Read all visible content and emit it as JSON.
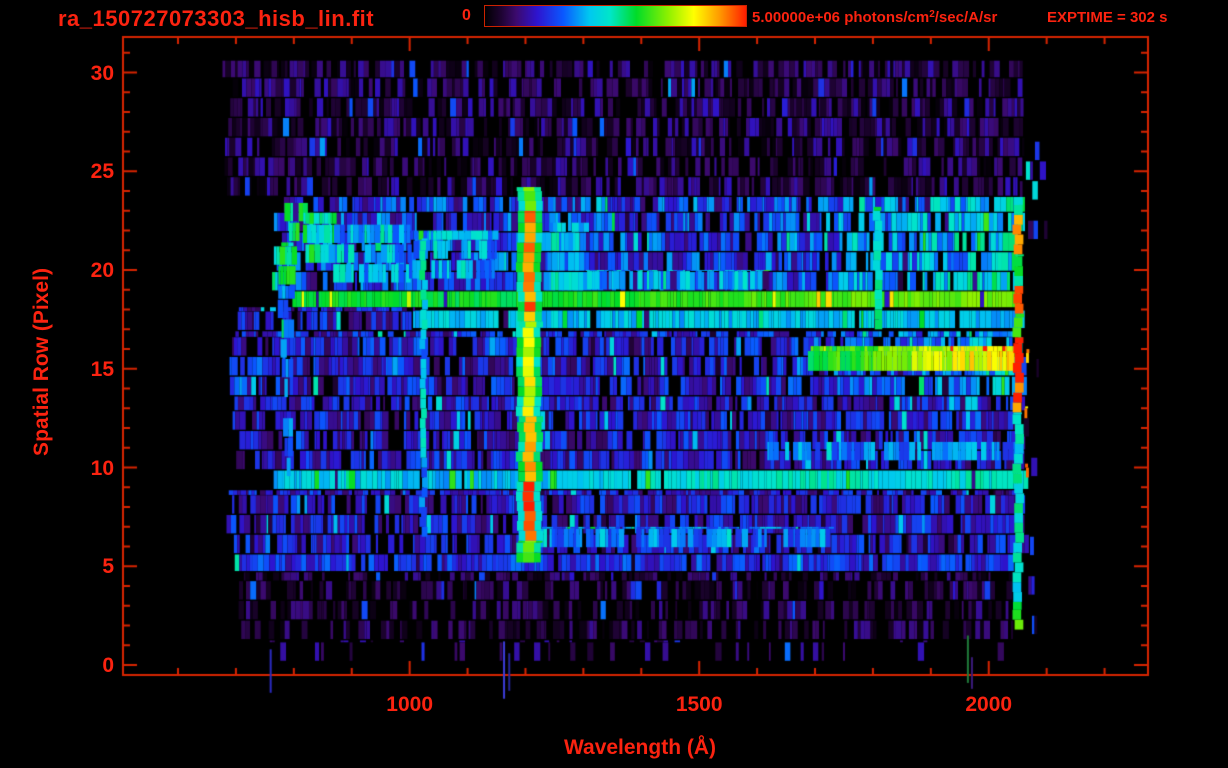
{
  "header": {
    "title": "ra_150727073303_hisb_lin.fit",
    "exptime": "EXPTIME = 302 s",
    "colorbar": {
      "min_label": "0",
      "flux": {
        "value": "5.00000e+06 ",
        "units_prefix": "photons/cm",
        "units_sup": "2",
        "units_suffix": "/sec/A/sr"
      }
    }
  },
  "axes": {
    "x_label": "Wavelength (Å)",
    "y_label": "Spatial Row (Pixel)",
    "x_ticks": [
      1000,
      1500,
      2000
    ],
    "y_ticks": [
      0,
      5,
      10,
      15,
      20,
      25,
      30
    ],
    "x_range": [
      505,
      2275
    ],
    "y_range": [
      -0.5,
      31.8
    ],
    "x_minor_step": 100,
    "y_minor_step": 1
  },
  "colors": {
    "background": "#000000",
    "axis": "#d82400",
    "label_text": "#fb2310",
    "title_text": "#fb1a0a",
    "colormap_stops": [
      [
        0.0,
        "#000000"
      ],
      [
        0.06,
        "#1d0330"
      ],
      [
        0.12,
        "#3c0a6e"
      ],
      [
        0.2,
        "#2e14cf"
      ],
      [
        0.3,
        "#0a58ff"
      ],
      [
        0.4,
        "#00c8f0"
      ],
      [
        0.48,
        "#00e6c8"
      ],
      [
        0.58,
        "#00dc28"
      ],
      [
        0.7,
        "#8cf000"
      ],
      [
        0.8,
        "#ffff00"
      ],
      [
        0.9,
        "#ff9800"
      ],
      [
        1.0,
        "#ff1e00"
      ]
    ]
  },
  "chart_data": {
    "type": "heatmap",
    "title": "ra_150727073303_hisb_lin.fit",
    "exposure_time_s": 302,
    "color_scale": {
      "min": 0,
      "max": 5000000,
      "units": "photons/cm^2/sec/A/sr",
      "colormap": "rainbow"
    },
    "x_axis": {
      "label": "Wavelength (Å)",
      "range": [
        505,
        2275
      ],
      "ticks": [
        1000,
        1500,
        2000
      ],
      "minor_step": 100,
      "data_extent": [
        683,
        2092
      ]
    },
    "y_axis": {
      "label": "Spatial Row (Pixel)",
      "range": [
        -0.5,
        31.8
      ],
      "ticks": [
        0,
        5,
        10,
        15,
        20,
        25,
        30
      ],
      "minor_step": 1,
      "data_extent": [
        0,
        31
      ]
    },
    "render_seed": 20150727,
    "noise_bands": [
      {
        "name": "rows 24-31 faint purple background",
        "rows": [
          23.7,
          30.6
        ],
        "wl": [
          683,
          2058
        ],
        "v": 0.1,
        "jitter": 0.09,
        "gap": 0.3
      },
      {
        "name": "rows 19-24 airglow band",
        "rows": [
          18.9,
          23.7
        ],
        "wl": [
          770,
          2058
        ],
        "v": 0.25,
        "jitter": 0.13,
        "gap": 0.14,
        "ramp": {
          "from": 1620,
          "to": 2058,
          "add": 0.2
        }
      },
      {
        "name": "row 18.5 bright continuum stripe",
        "rows": [
          18.12,
          18.92
        ],
        "wl": [
          790,
          2058
        ],
        "v": 0.58,
        "jitter": 0.04,
        "gap": 0,
        "solid": true,
        "ramp": {
          "from": 1150,
          "to": 1900,
          "add": 0.09
        }
      },
      {
        "name": "row 17.5 cyan band",
        "rows": [
          17.0,
          17.95
        ],
        "wl": [
          1010,
          2058
        ],
        "v": 0.4,
        "jitter": 0.06,
        "gap": 0.06
      },
      {
        "name": "rows 17-18 left noise",
        "rows": [
          16.9,
          18.12
        ],
        "wl": [
          695,
          1010
        ],
        "v": 0.2,
        "jitter": 0.1,
        "gap": 0.2
      },
      {
        "name": "rows 13.5-17 noise",
        "rows": [
          13.6,
          16.9
        ],
        "wl": [
          695,
          2058
        ],
        "v": 0.21,
        "jitter": 0.11,
        "gap": 0.16,
        "ramp": {
          "from": 1600,
          "to": 2058,
          "add": 0.17
        }
      },
      {
        "name": "rows 15-16 bright orange right band",
        "rows": [
          14.9,
          16.15
        ],
        "wl": [
          1690,
          2045
        ],
        "v": 0.6,
        "jitter": 0.07,
        "gap": 0,
        "solid": true,
        "ramp": {
          "from": 1730,
          "to": 2010,
          "add": 0.22
        }
      },
      {
        "name": "rows 10-13.5 noise",
        "rows": [
          9.85,
          13.6
        ],
        "wl": [
          695,
          2058
        ],
        "v": 0.2,
        "jitter": 0.1,
        "gap": 0.18
      },
      {
        "name": "rows 9-10 cyan band",
        "rows": [
          8.85,
          9.85
        ],
        "wl": [
          757,
          2058
        ],
        "v": 0.4,
        "jitter": 0.06,
        "gap": 0.04,
        "ramp": {
          "from": 1190,
          "to": 1450,
          "add": 0.06
        }
      },
      {
        "name": "rows 5.5-9 noise",
        "rows": [
          5.6,
          8.85
        ],
        "wl": [
          690,
          2058
        ],
        "v": 0.2,
        "jitter": 0.1,
        "gap": 0.18
      },
      {
        "name": "row 5 denser blue band",
        "rows": [
          4.7,
          5.6
        ],
        "wl": [
          690,
          2050
        ],
        "v": 0.24,
        "jitter": 0.09,
        "gap": 0.1
      },
      {
        "name": "rows 1-5 sparse purple",
        "rows": [
          1.25,
          4.7
        ],
        "wl": [
          705,
          2040
        ],
        "v": 0.085,
        "jitter": 0.07,
        "gap": 0.45
      },
      {
        "name": "rows 0-1 rare specks",
        "rows": [
          0.15,
          1.25
        ],
        "wl": [
          720,
          2030
        ],
        "v": 0.12,
        "jitter": 0.06,
        "gap": 0.85
      },
      {
        "name": "specks beyond detector edge",
        "rows": [
          1.5,
          28.5
        ],
        "wl": [
          2062,
          2092
        ],
        "v": 0.17,
        "jitter": 0.13,
        "gap": 0.88
      }
    ],
    "bright_patches": [
      {
        "name": "left arc upper",
        "rows": [
          21.4,
          23.4
        ],
        "wl": [
          788,
          812
        ],
        "v": 0.56,
        "jitter": 0.1,
        "gap": 0
      },
      {
        "name": "left arc lower",
        "rows": [
          19.2,
          21.4
        ],
        "wl": [
          774,
          798
        ],
        "v": 0.52,
        "jitter": 0.1,
        "gap": 0
      },
      {
        "name": "left vertical streak",
        "rows": [
          9.5,
          19.2
        ],
        "wl": [
          781,
          791
        ],
        "v": 0.33,
        "jitter": 0.09,
        "gap": 0
      },
      {
        "name": "green blob rows 20-23",
        "rows": [
          20.3,
          22.9
        ],
        "wl": [
          812,
          868
        ],
        "v": 0.5,
        "jitter": 0.12,
        "gap": 0
      },
      {
        "name": "cyan patch mid-left",
        "rows": [
          19.3,
          22.3
        ],
        "wl": [
          868,
          1000
        ],
        "v": 0.4,
        "jitter": 0.12,
        "gap": 0.12
      },
      {
        "name": "cyan patch left of Ly-alpha",
        "rows": [
          19.5,
          22.0
        ],
        "wl": [
          1000,
          1150
        ],
        "v": 0.38,
        "jitter": 0.12,
        "gap": 0.15
      },
      {
        "name": "cyan patch right of Ly-alpha",
        "rows": [
          18.9,
          22.4
        ],
        "wl": [
          1235,
          1300
        ],
        "v": 0.42,
        "jitter": 0.1,
        "gap": 0.1
      },
      {
        "name": "rows 19-20 green strip",
        "rows": [
          18.95,
          20.0
        ],
        "wl": [
          1300,
          1620
        ],
        "v": 0.38,
        "jitter": 0.1,
        "gap": 0.12
      },
      {
        "name": "row 6.5 cyan segment",
        "rows": [
          5.9,
          7.0
        ],
        "wl": [
          1210,
          1730
        ],
        "v": 0.32,
        "jitter": 0.09,
        "gap": 0.15
      },
      {
        "name": "row 11 cyan segment",
        "rows": [
          10.3,
          11.3
        ],
        "wl": [
          1620,
          2045
        ],
        "v": 0.33,
        "jitter": 0.09,
        "gap": 0.15
      }
    ],
    "emission_lines": [
      {
        "name": "Lyman-beta",
        "wavelength": 1024,
        "width": 10,
        "segments": [
          {
            "rows": [
              6.5,
              10.0
            ],
            "v": 0.3
          },
          {
            "rows": [
              10.0,
              14.5
            ],
            "v": 0.44
          },
          {
            "rows": [
              14.5,
              17.0
            ],
            "v": 0.34
          },
          {
            "rows": [
              17.0,
              21.6
            ],
            "v": 0.46
          }
        ]
      },
      {
        "name": "Lyman-alpha",
        "wavelength": 1207,
        "width": 19,
        "halo_width": 42,
        "halo_v": 0.52,
        "segments": [
          {
            "rows": [
              5.2,
              6.3
            ],
            "v": 0.66
          },
          {
            "rows": [
              6.3,
              12.6
            ],
            "v": 0.93
          },
          {
            "rows": [
              12.6,
              17.4
            ],
            "v": 0.79
          },
          {
            "rows": [
              17.4,
              23.0
            ],
            "v": 0.9
          },
          {
            "rows": [
              23.0,
              24.2
            ],
            "v": 0.62
          }
        ]
      },
      {
        "name": "line-1808",
        "wavelength": 1808,
        "width": 13,
        "segments": [
          {
            "rows": [
              17.0,
              23.2
            ],
            "v": 0.5
          }
        ]
      },
      {
        "name": "detector right edge",
        "wavelength": 2051,
        "width": 15,
        "segments": [
          {
            "rows": [
              1.8,
              3.2
            ],
            "v": 0.62
          },
          {
            "rows": [
              3.2,
              12.8
            ],
            "v": 0.46
          },
          {
            "rows": [
              12.8,
              16.6
            ],
            "v": 0.96
          },
          {
            "rows": [
              16.6,
              17.8
            ],
            "v": 0.62
          },
          {
            "rows": [
              17.8,
              19.2
            ],
            "v": 0.92
          },
          {
            "rows": [
              19.2,
              20.8
            ],
            "v": 0.58
          },
          {
            "rows": [
              20.8,
              22.8
            ],
            "v": 0.86
          },
          {
            "rows": [
              22.8,
              23.7
            ],
            "v": 0.5
          }
        ]
      },
      {
        "name": "red specks beyond edge",
        "wavelength": 2066,
        "width": 5,
        "segments": [
          {
            "rows": [
              9.5,
              10.2
            ],
            "v": 0.9
          },
          {
            "rows": [
              12.5,
              13.1
            ],
            "v": 0.88
          },
          {
            "rows": [
              15.3,
              16.0
            ],
            "v": 0.9
          }
        ]
      }
    ],
    "edge_artifacts": [
      {
        "wavelength": 760,
        "rows": [
          -1.4,
          0.8
        ],
        "color": "#2a2abf"
      },
      {
        "wavelength": 1163,
        "rows": [
          -1.7,
          1.2
        ],
        "color": "#3c3cd9"
      },
      {
        "wavelength": 1172,
        "rows": [
          -1.3,
          0.6
        ],
        "color": "#262699"
      },
      {
        "wavelength": 1964,
        "rows": [
          -0.9,
          1.5
        ],
        "color": "#1f7a3a"
      },
      {
        "wavelength": 1971,
        "rows": [
          -1.2,
          0.4
        ],
        "color": "#3a1a7a"
      }
    ]
  }
}
